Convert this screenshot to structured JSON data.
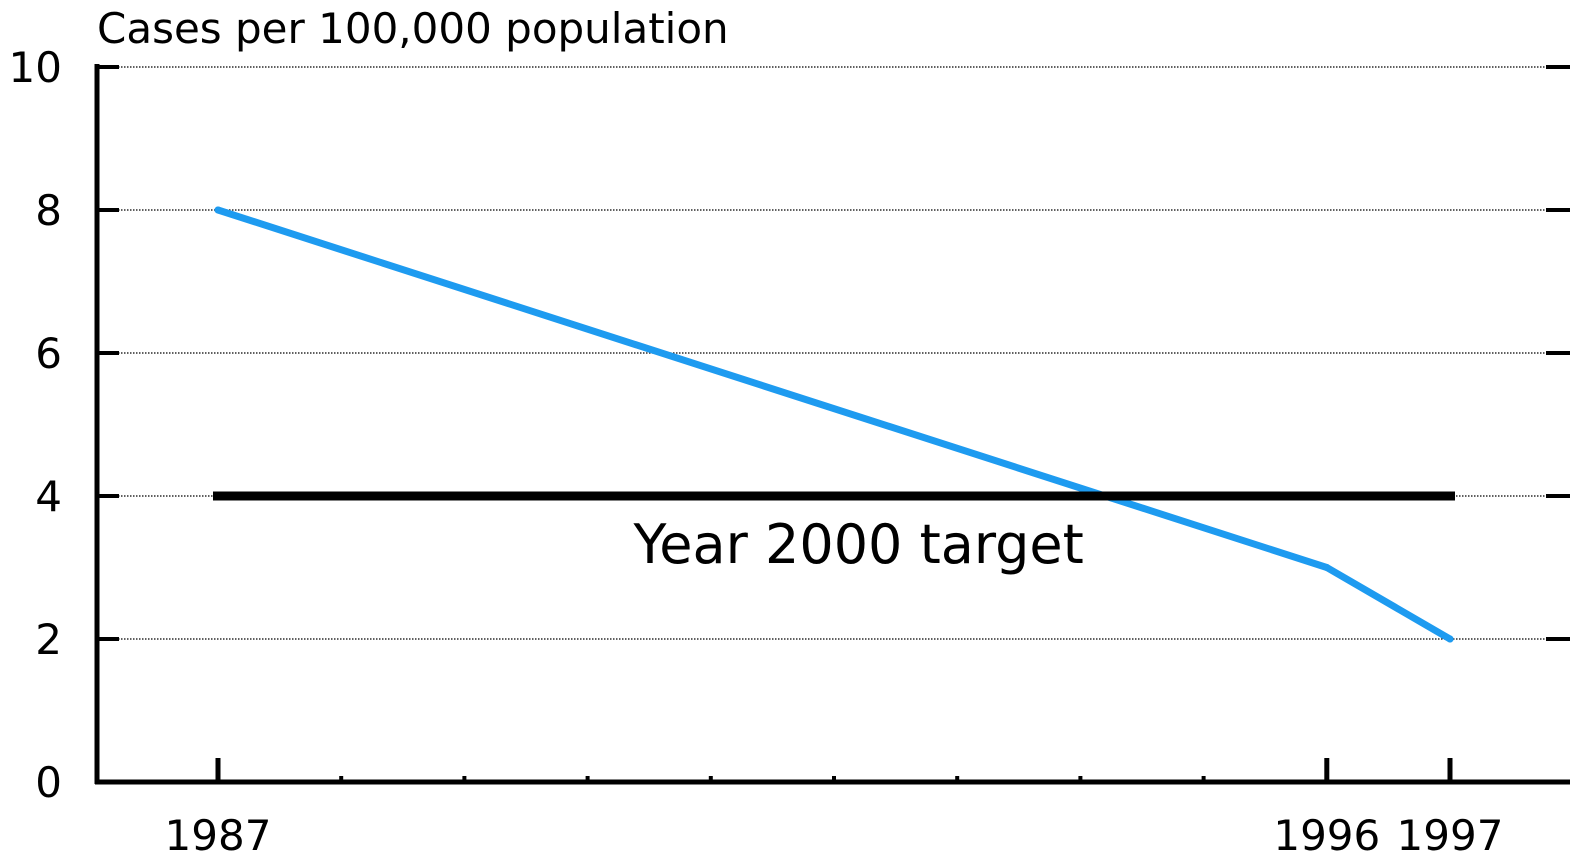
{
  "chart_data": {
    "type": "line",
    "ylabel": "Cases per 100,000 population",
    "xlabel": "",
    "ylim": [
      0,
      10
    ],
    "yticks": [
      0,
      2,
      4,
      6,
      8,
      10
    ],
    "xlim": [
      1986,
      1997.8
    ],
    "x_tick_labels": [
      "1987",
      "1996",
      "1997"
    ],
    "x_ticks_labeled": [
      1987,
      1996,
      1997
    ],
    "x_ticks_minor": [
      1988,
      1989,
      1990,
      1991,
      1992,
      1993,
      1994,
      1995
    ],
    "grid": "horizontal dotted",
    "series": [
      {
        "color": "#1e9bf0",
        "points": [
          {
            "x": 1987,
            "y": 8
          },
          {
            "x": 1996,
            "y": 3
          },
          {
            "x": 1997,
            "y": 2
          }
        ]
      }
    ],
    "target": {
      "value": 4,
      "x_range": [
        1987,
        1997
      ],
      "label": "Year 2000 target",
      "color": "#000000"
    }
  }
}
